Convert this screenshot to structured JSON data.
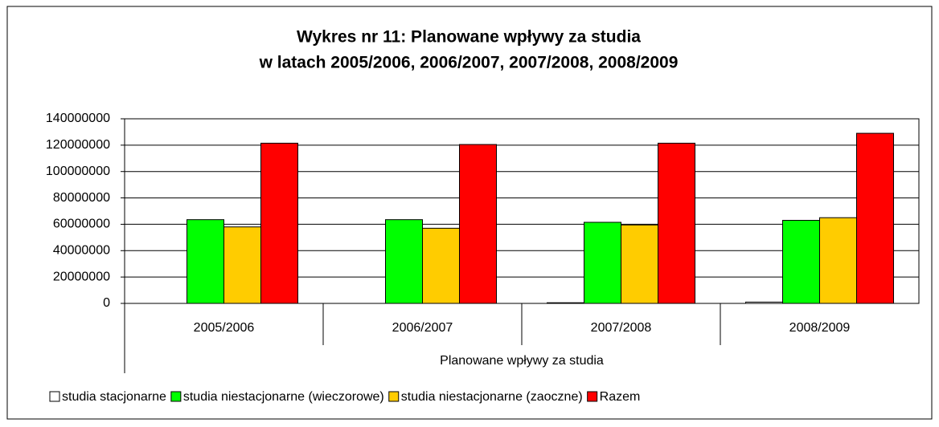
{
  "chart_data": {
    "type": "bar",
    "title": [
      "Wykres nr 11: Planowane wpływy za studia",
      "w latach 2005/2006, 2006/2007, 2007/2008, 2008/2009"
    ],
    "x_label": "Planowane wpływy za studia",
    "categories": [
      "2005/2006",
      "2006/2007",
      "2007/2008",
      "2008/2009"
    ],
    "series": [
      {
        "name": "studia stacjonarne",
        "color": "#ffffff",
        "values": [
          0,
          0,
          500000,
          1000000
        ]
      },
      {
        "name": "studia niestacjonarne (wieczorowe)",
        "color": "#00ff00",
        "values": [
          63500000,
          63500000,
          61500000,
          63000000
        ]
      },
      {
        "name": "studia niestacjonarne (zaoczne)",
        "color": "#ffcc00",
        "values": [
          58000000,
          57000000,
          59500000,
          65000000
        ]
      },
      {
        "name": "Razem",
        "color": "#ff0000",
        "values": [
          121500000,
          120500000,
          121500000,
          129000000
        ]
      }
    ],
    "ylim": [
      0,
      140000000
    ],
    "yticks": [
      0,
      20000000,
      40000000,
      60000000,
      80000000,
      100000000,
      120000000,
      140000000
    ],
    "grid": true,
    "legend": "bottom"
  }
}
